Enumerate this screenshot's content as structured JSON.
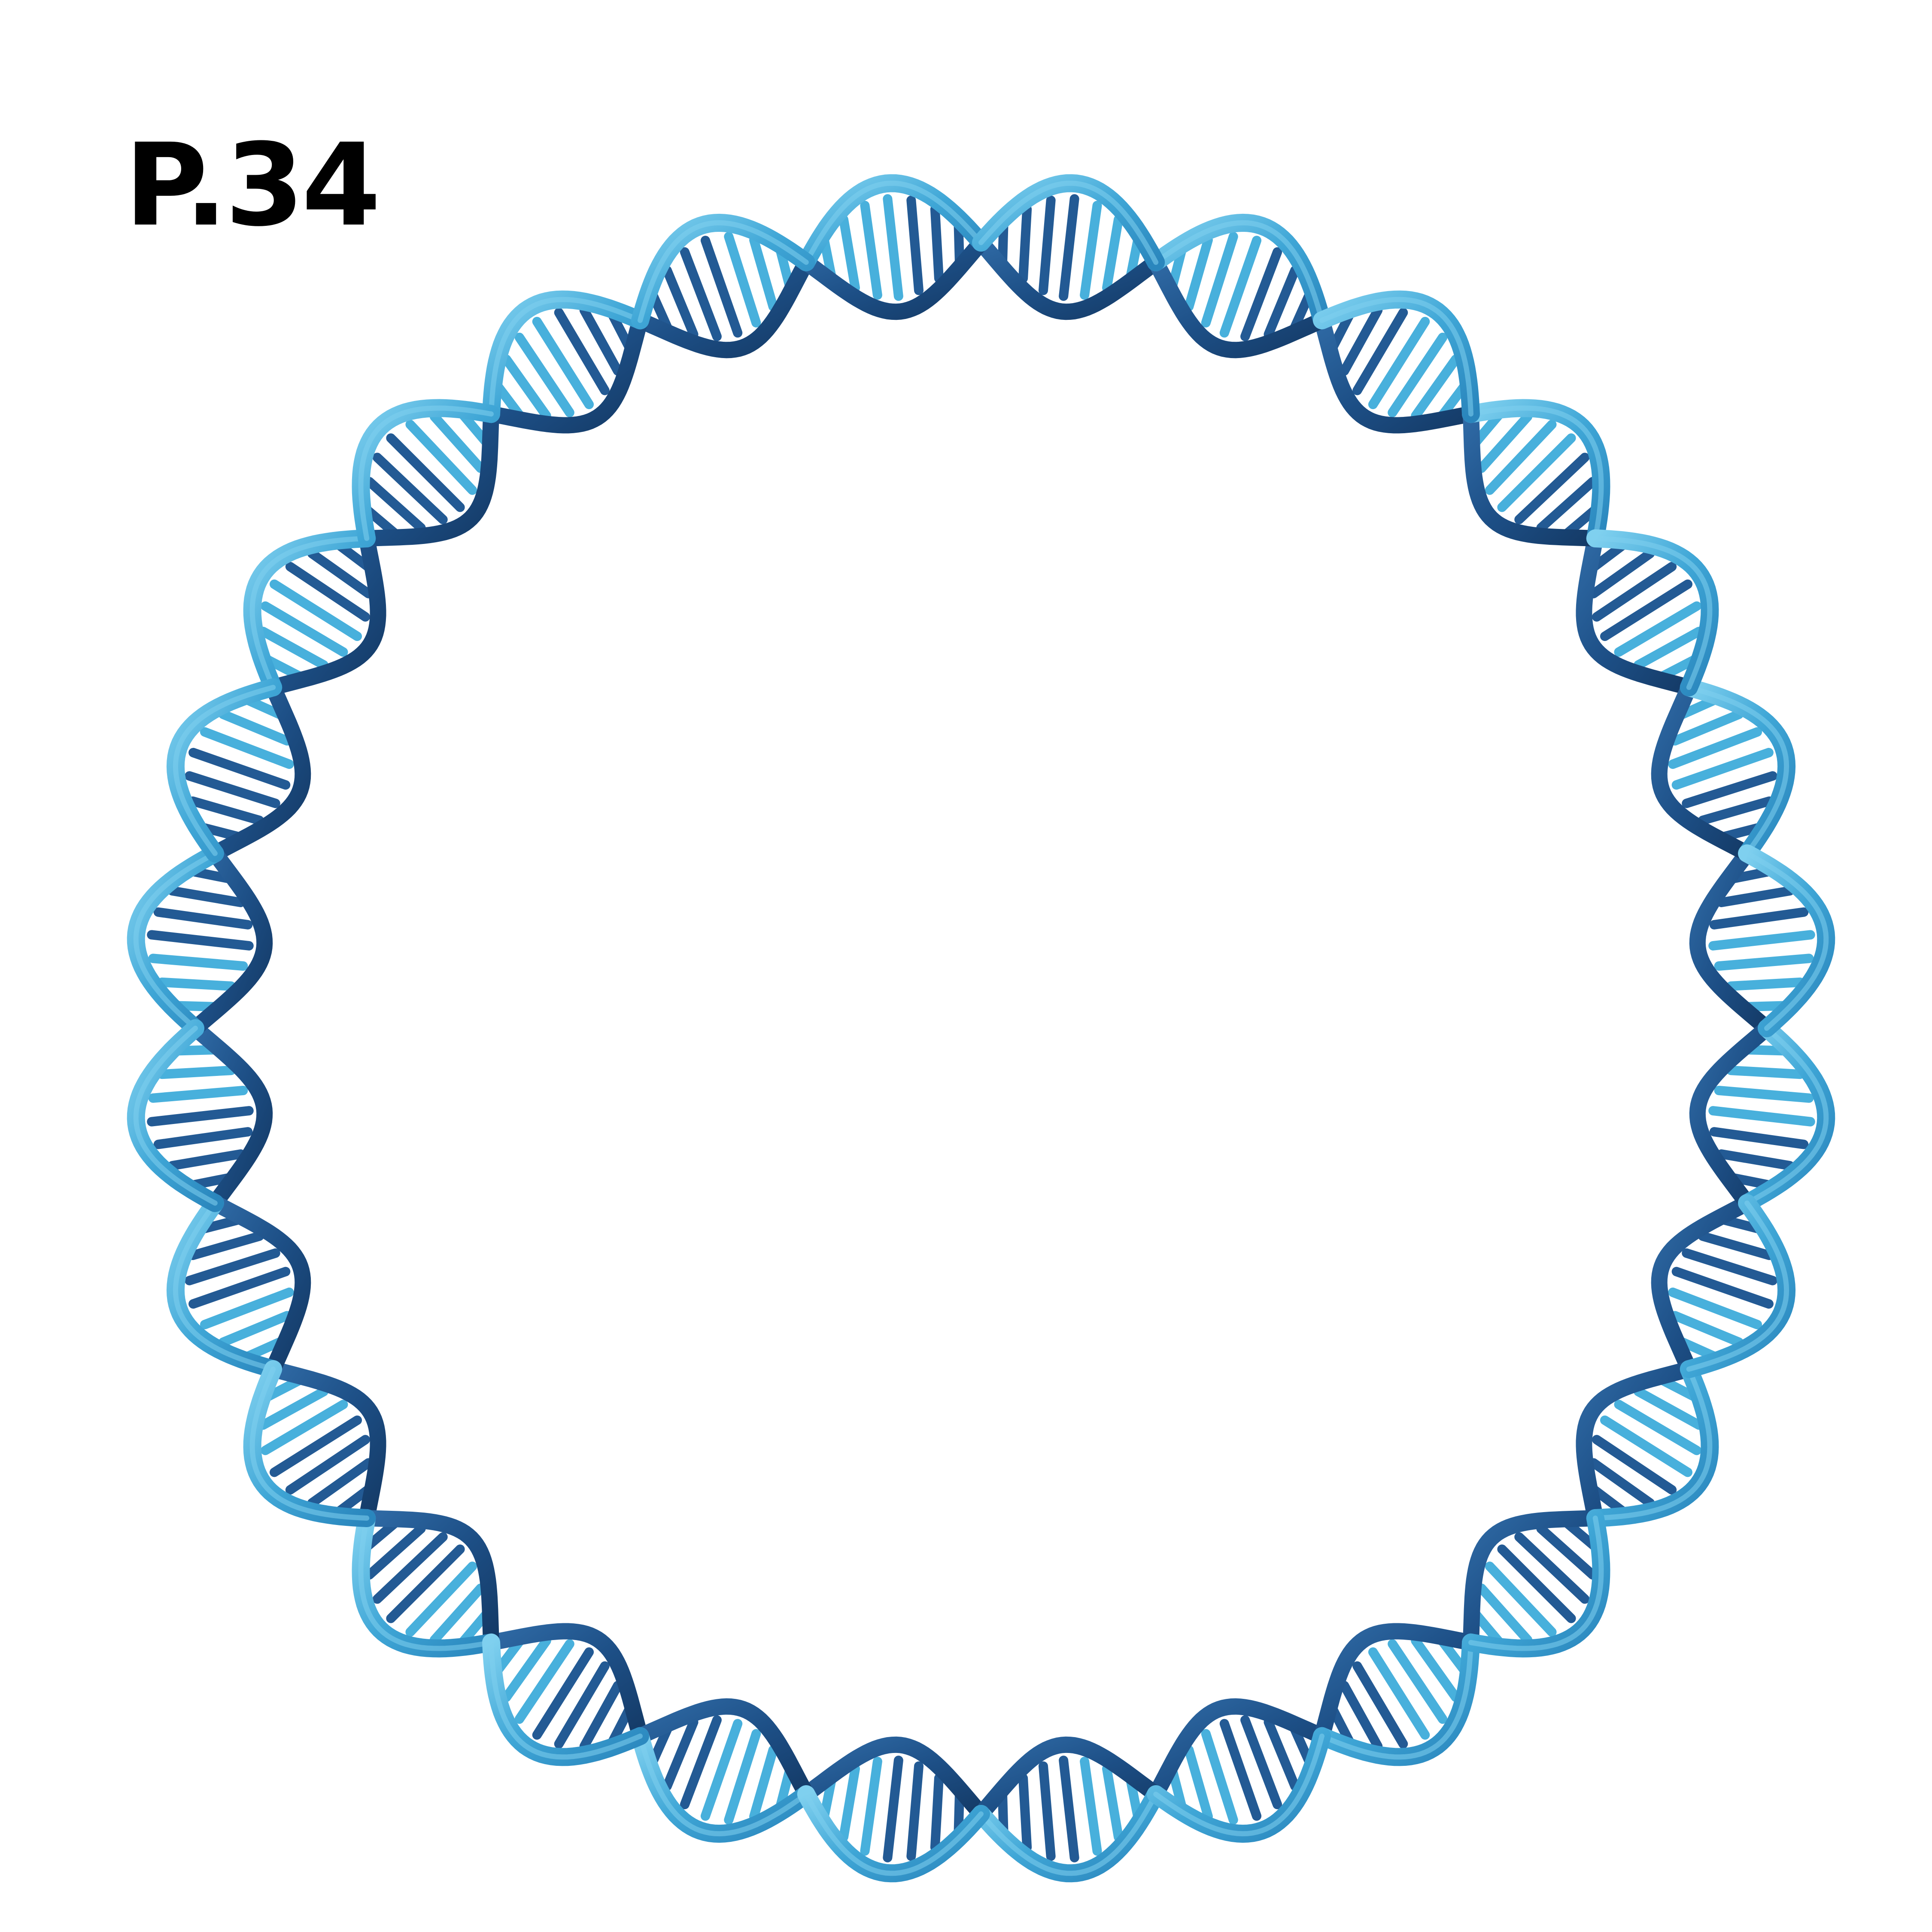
{
  "page_label": "P.34",
  "illustration": {
    "subject": "circular-dna-double-helix",
    "twists": 14,
    "colors": {
      "light_strand": "#3fa6d6",
      "light_highlight": "#7fd0ef",
      "dark_strand": "#1d4f86",
      "dark_shadow": "#143a66",
      "rung_light": "#48b0dc",
      "rung_dark": "#235a94",
      "background": "#ffffff"
    }
  }
}
